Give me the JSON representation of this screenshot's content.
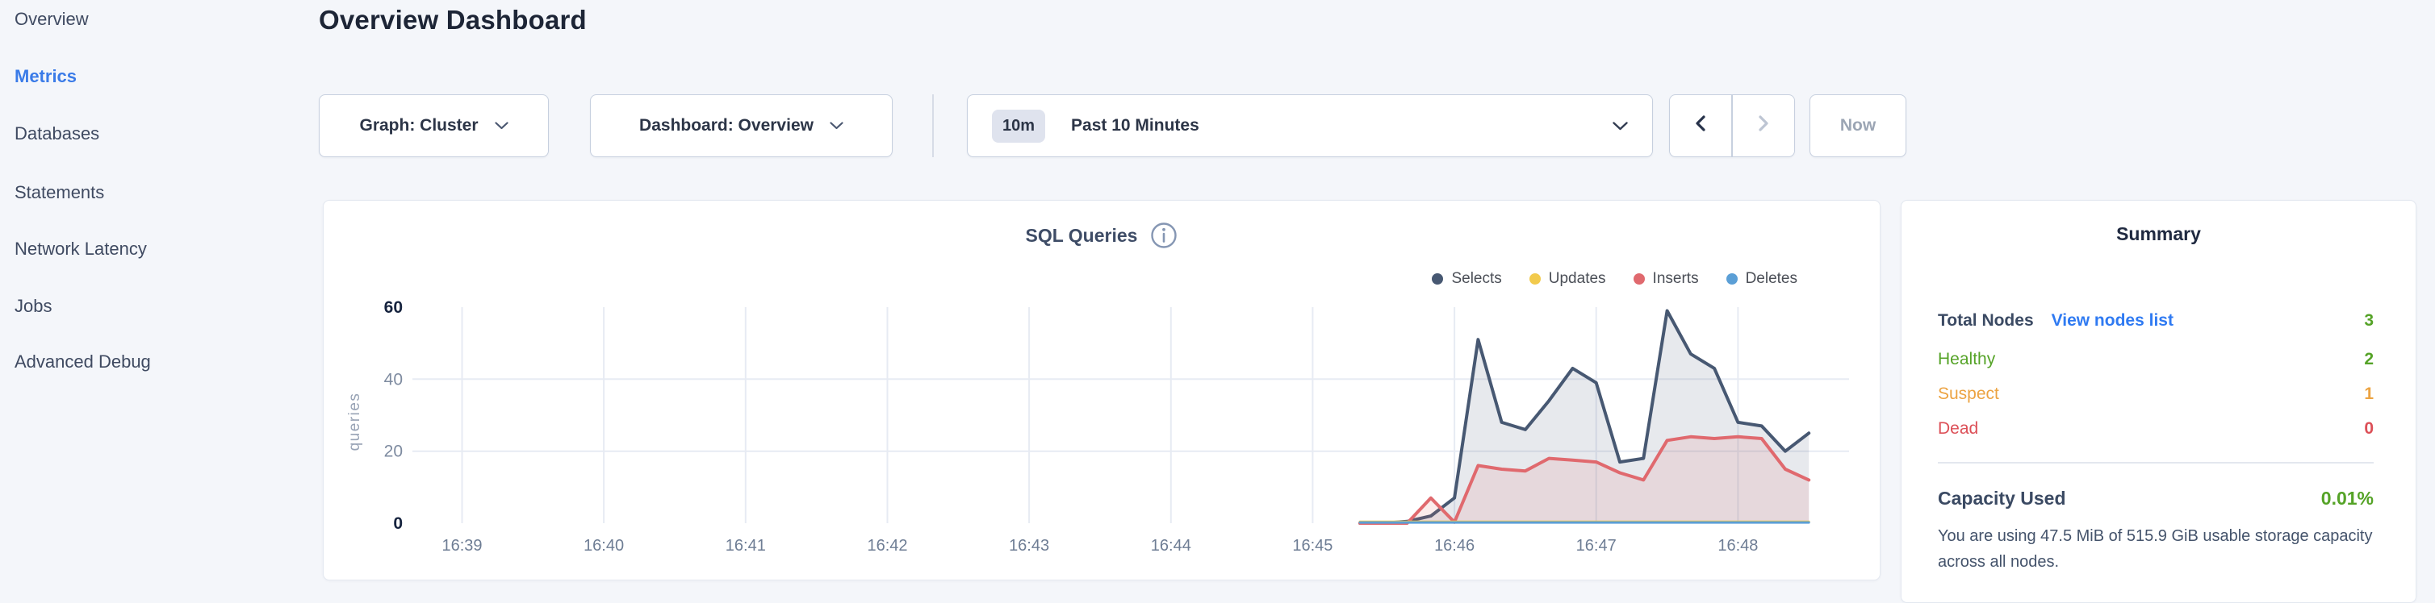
{
  "sidebar": {
    "items": [
      {
        "label": "Overview",
        "active": false
      },
      {
        "label": "Metrics",
        "active": true
      },
      {
        "label": "Databases",
        "active": false
      },
      {
        "label": "Statements",
        "active": false
      },
      {
        "label": "Network Latency",
        "active": false
      },
      {
        "label": "Jobs",
        "active": false
      },
      {
        "label": "Advanced Debug",
        "active": false
      }
    ]
  },
  "header": {
    "title": "Overview Dashboard"
  },
  "controls": {
    "graph_label": "Graph: Cluster",
    "dashboard_label": "Dashboard: Overview",
    "time_badge": "10m",
    "time_label": "Past 10 Minutes",
    "now_label": "Now",
    "icons": {
      "dropdown": "chevron-down-icon",
      "prev": "chevron-left-icon",
      "next": "chevron-right-icon"
    }
  },
  "chart_card": {
    "title": "SQL Queries",
    "info_icon": "info-icon",
    "legend": [
      {
        "label": "Selects",
        "color": "#475872"
      },
      {
        "label": "Updates",
        "color": "#f2ca4c"
      },
      {
        "label": "Inserts",
        "color": "#e0696e"
      },
      {
        "label": "Deletes",
        "color": "#5b9fd6"
      }
    ]
  },
  "chart_data": {
    "type": "area",
    "title": "SQL Queries",
    "xlabel": "",
    "ylabel": "queries",
    "ylim": [
      0,
      60
    ],
    "y_ticks": [
      0,
      20,
      40,
      60
    ],
    "x_ticks": [
      "16:39",
      "16:40",
      "16:41",
      "16:42",
      "16:43",
      "16:44",
      "16:45",
      "16:46",
      "16:47",
      "16:48"
    ],
    "x_axis_start": "16:38:39",
    "x_axis_end": "16:48:47",
    "grid": true,
    "legend_position": "top-right",
    "x": [
      "16:45:20",
      "16:45:30",
      "16:45:40",
      "16:45:50",
      "16:46:00",
      "16:46:10",
      "16:46:20",
      "16:46:30",
      "16:46:40",
      "16:46:50",
      "16:47:00",
      "16:47:10",
      "16:47:20",
      "16:47:30",
      "16:47:40",
      "16:47:50",
      "16:48:00",
      "16:48:10",
      "16:48:20",
      "16:48:30"
    ],
    "series": [
      {
        "name": "Selects",
        "color": "#475872",
        "values": [
          0,
          0,
          0.5,
          2,
          7,
          51,
          28,
          26,
          34,
          43,
          39,
          17,
          18,
          59,
          47,
          43,
          28,
          27,
          20,
          25
        ]
      },
      {
        "name": "Updates",
        "color": "#f2ca4c",
        "values": [
          0.4,
          0.4,
          0.4,
          0.4,
          0.4,
          0.4,
          0.4,
          0.4,
          0.4,
          0.4,
          0.4,
          0.4,
          0.4,
          0.4,
          0.4,
          0.4,
          0.4,
          0.4,
          0.4,
          0.4
        ]
      },
      {
        "name": "Inserts",
        "color": "#e0696e",
        "values": [
          0,
          0,
          0,
          7,
          0.3,
          16,
          15,
          14.5,
          18,
          17.5,
          17,
          14,
          12,
          23,
          24,
          23.5,
          24,
          23.5,
          15,
          12
        ]
      },
      {
        "name": "Deletes",
        "color": "#5b9fd6",
        "values": [
          0.2,
          0.2,
          0.2,
          0.2,
          0.2,
          0.2,
          0.2,
          0.2,
          0.2,
          0.2,
          0.2,
          0.2,
          0.2,
          0.2,
          0.2,
          0.2,
          0.2,
          0.2,
          0.2,
          0.2
        ]
      }
    ]
  },
  "summary": {
    "title": "Summary",
    "rows": [
      {
        "label": "Total Nodes",
        "link": "View nodes list",
        "value": "3",
        "label_color": "#3b4a63",
        "value_color": "#55a327"
      },
      {
        "label": "Healthy",
        "value": "2",
        "label_color": "#55a327",
        "value_color": "#55a327"
      },
      {
        "label": "Suspect",
        "value": "1",
        "label_color": "#eca342",
        "value_color": "#eca342"
      },
      {
        "label": "Dead",
        "value": "0",
        "label_color": "#dc4f57",
        "value_color": "#dc4f57"
      }
    ],
    "capacity": {
      "label": "Capacity Used",
      "value": "0.01%",
      "description": "You are using 47.5 MiB of 515.9 GiB usable storage capacity across all nodes."
    }
  }
}
